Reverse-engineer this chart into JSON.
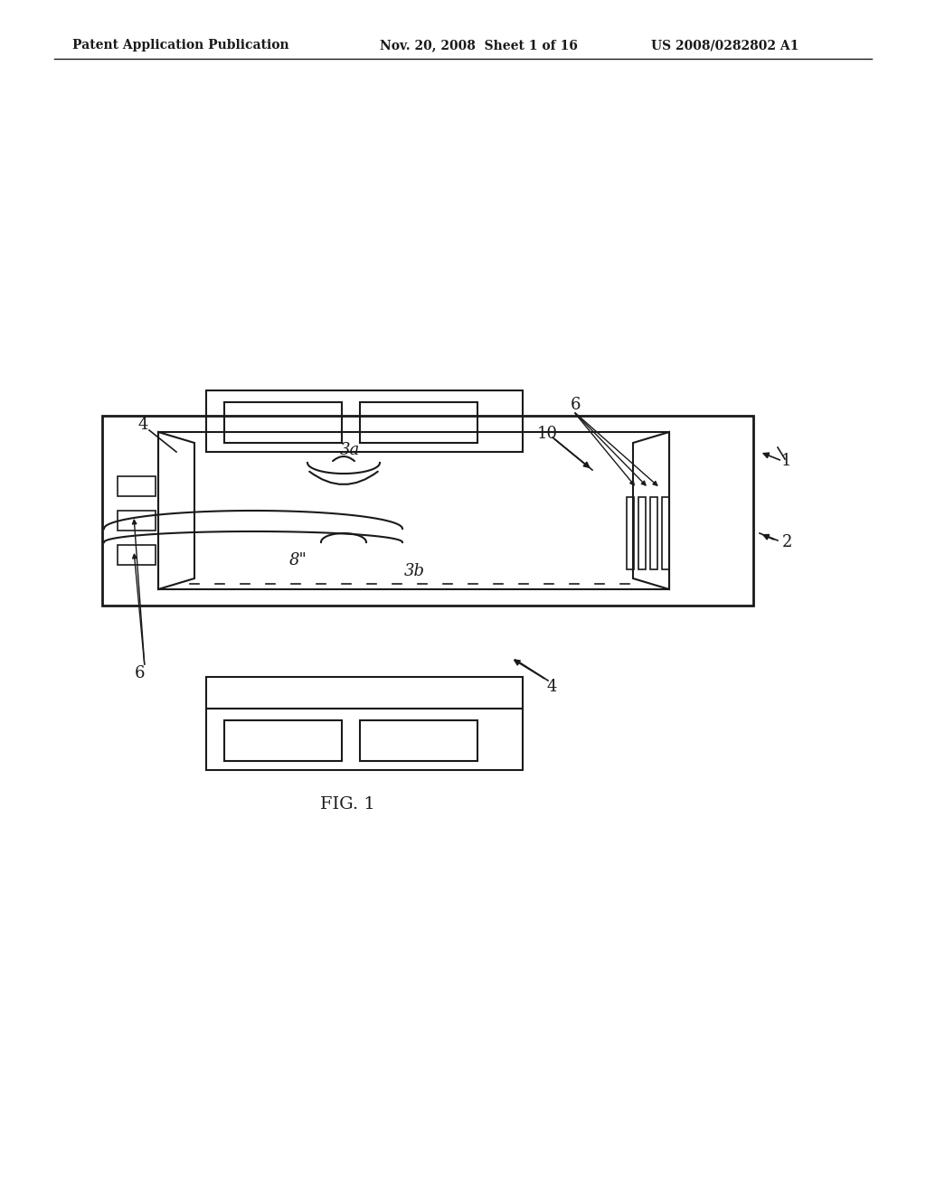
{
  "bg_color": "#ffffff",
  "line_color": "#1a1a1a",
  "header_left": "Patent Application Publication",
  "header_mid": "Nov. 20, 2008  Sheet 1 of 16",
  "header_right": "US 2008/0282802 A1",
  "fig_label": "FIG. 1",
  "label_1": "1",
  "label_2": "2",
  "label_3a": "3a",
  "label_3b": "3b",
  "label_4a": "4",
  "label_4b": "4",
  "label_6a": "6",
  "label_6b": "6",
  "label_8": "8\"",
  "label_10": "10"
}
